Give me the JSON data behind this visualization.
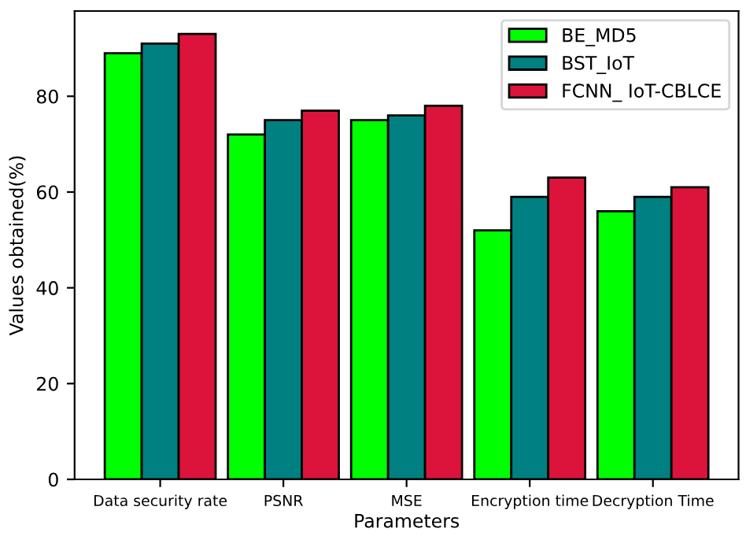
{
  "chart_data": {
    "type": "bar",
    "xlabel": "Parameters",
    "ylabel": "Values obtained(%)",
    "categories": [
      "Data security rate",
      "PSNR",
      "MSE",
      "Encryption time",
      "Decryption Time"
    ],
    "series": [
      {
        "name": "BE_MD5",
        "color": "#00ff00",
        "values": [
          89,
          72,
          75,
          52,
          56
        ]
      },
      {
        "name": "BST_IoT",
        "color": "#008080",
        "values": [
          91,
          75,
          76,
          59,
          59
        ]
      },
      {
        "name": "FCNN_ IoT-CBLCE",
        "color": "#dc143c",
        "values": [
          93,
          77,
          78,
          63,
          61
        ]
      }
    ],
    "ylim": [
      0,
      97.8
    ],
    "yticks": [
      0,
      20,
      40,
      60,
      80
    ],
    "grid": false,
    "legend": "top right"
  }
}
